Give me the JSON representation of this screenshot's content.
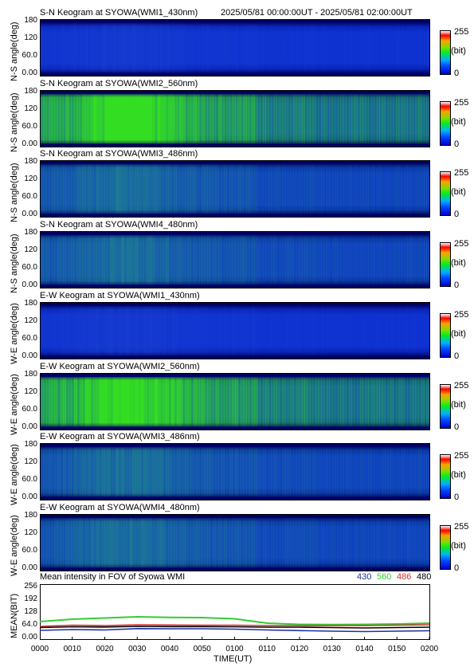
{
  "header": {
    "time_range": "2025/05/81 00:00:00UT - 2025/05/81 02:00:00UT"
  },
  "colorbar": {
    "max": "255",
    "unit": "(bit)",
    "min": "0"
  },
  "keograms": [
    {
      "title": "S-N Keogram at SYOWA(WMI1_430nm)",
      "ylabel": "N-S angle(deg)",
      "yticks": [
        "180",
        "120",
        "60.0",
        "0.00"
      ],
      "level": 0.2,
      "color": "#1a3fd0"
    },
    {
      "title": "S-N Keogram at SYOWA(WMI2_560nm)",
      "ylabel": "N-S angle(deg)",
      "yticks": [
        "180",
        "120",
        "60.0",
        "0.00"
      ],
      "level": 0.6,
      "color": "#33dd22"
    },
    {
      "title": "S-N Keogram at SYOWA(WMI3_486nm)",
      "ylabel": "N-S angle(deg)",
      "yticks": [
        "180",
        "120",
        "60.0",
        "0.00"
      ],
      "level": 0.35,
      "color": "#1f7f90"
    },
    {
      "title": "S-N Keogram at SYOWA(WMI4_480nm)",
      "ylabel": "N-S angle(deg)",
      "yticks": [
        "180",
        "120",
        "60.0",
        "0.00"
      ],
      "level": 0.35,
      "color": "#1f7f90"
    },
    {
      "title": "E-W Keogram at SYOWA(WMI1_430nm)",
      "ylabel": "W-E angle(deg)",
      "yticks": [
        "180",
        "120",
        "60.0",
        "0.00"
      ],
      "level": 0.2,
      "color": "#1a3fd0"
    },
    {
      "title": "E-W Keogram at SYOWA(WMI2_560nm)",
      "ylabel": "W-E angle(deg)",
      "yticks": [
        "180",
        "120",
        "60.0",
        "0.00"
      ],
      "level": 0.6,
      "color": "#33dd22"
    },
    {
      "title": "E-W Keogram at SYOWA(WMI3_486nm)",
      "ylabel": "W-E angle(deg)",
      "yticks": [
        "180",
        "120",
        "60.0",
        "0.00"
      ],
      "level": 0.35,
      "color": "#1f7f90"
    },
    {
      "title": "E-W Keogram at SYOWA(WMI4_480nm)",
      "ylabel": "W-E angle(deg)",
      "yticks": [
        "180",
        "120",
        "60.0",
        "0.00"
      ],
      "level": 0.35,
      "color": "#1f7f90"
    }
  ],
  "chart_data": {
    "type": "line",
    "title": "Mean intensity in FOV of Syowa WMI",
    "xlabel": "TIME(UT)",
    "ylabel": "MEAN(BIT)",
    "ylim": [
      0,
      256
    ],
    "yticks": [
      "256",
      "192",
      "128",
      "64.0",
      "0.00"
    ],
    "x": [
      "0000",
      "0010",
      "0020",
      "0030",
      "0040",
      "0050",
      "0100",
      "0110",
      "0120",
      "0130",
      "0140",
      "0150",
      "0200"
    ],
    "series": [
      {
        "name": "430",
        "color": "#1f2fa0",
        "values": [
          36,
          40,
          38,
          45,
          44,
          44,
          42,
          38,
          35,
          32,
          30,
          32,
          34
        ]
      },
      {
        "name": "560",
        "color": "#33cc33",
        "values": [
          80,
          92,
          98,
          104,
          101,
          100,
          94,
          72,
          66,
          65,
          66,
          68,
          72
        ]
      },
      {
        "name": "486",
        "color": "#d03030",
        "values": [
          56,
          62,
          60,
          64,
          63,
          62,
          62,
          60,
          60,
          60,
          60,
          62,
          64
        ]
      },
      {
        "name": "480",
        "color": "#000000",
        "values": [
          50,
          54,
          53,
          56,
          55,
          55,
          54,
          52,
          52,
          50,
          48,
          50,
          52
        ]
      }
    ]
  }
}
